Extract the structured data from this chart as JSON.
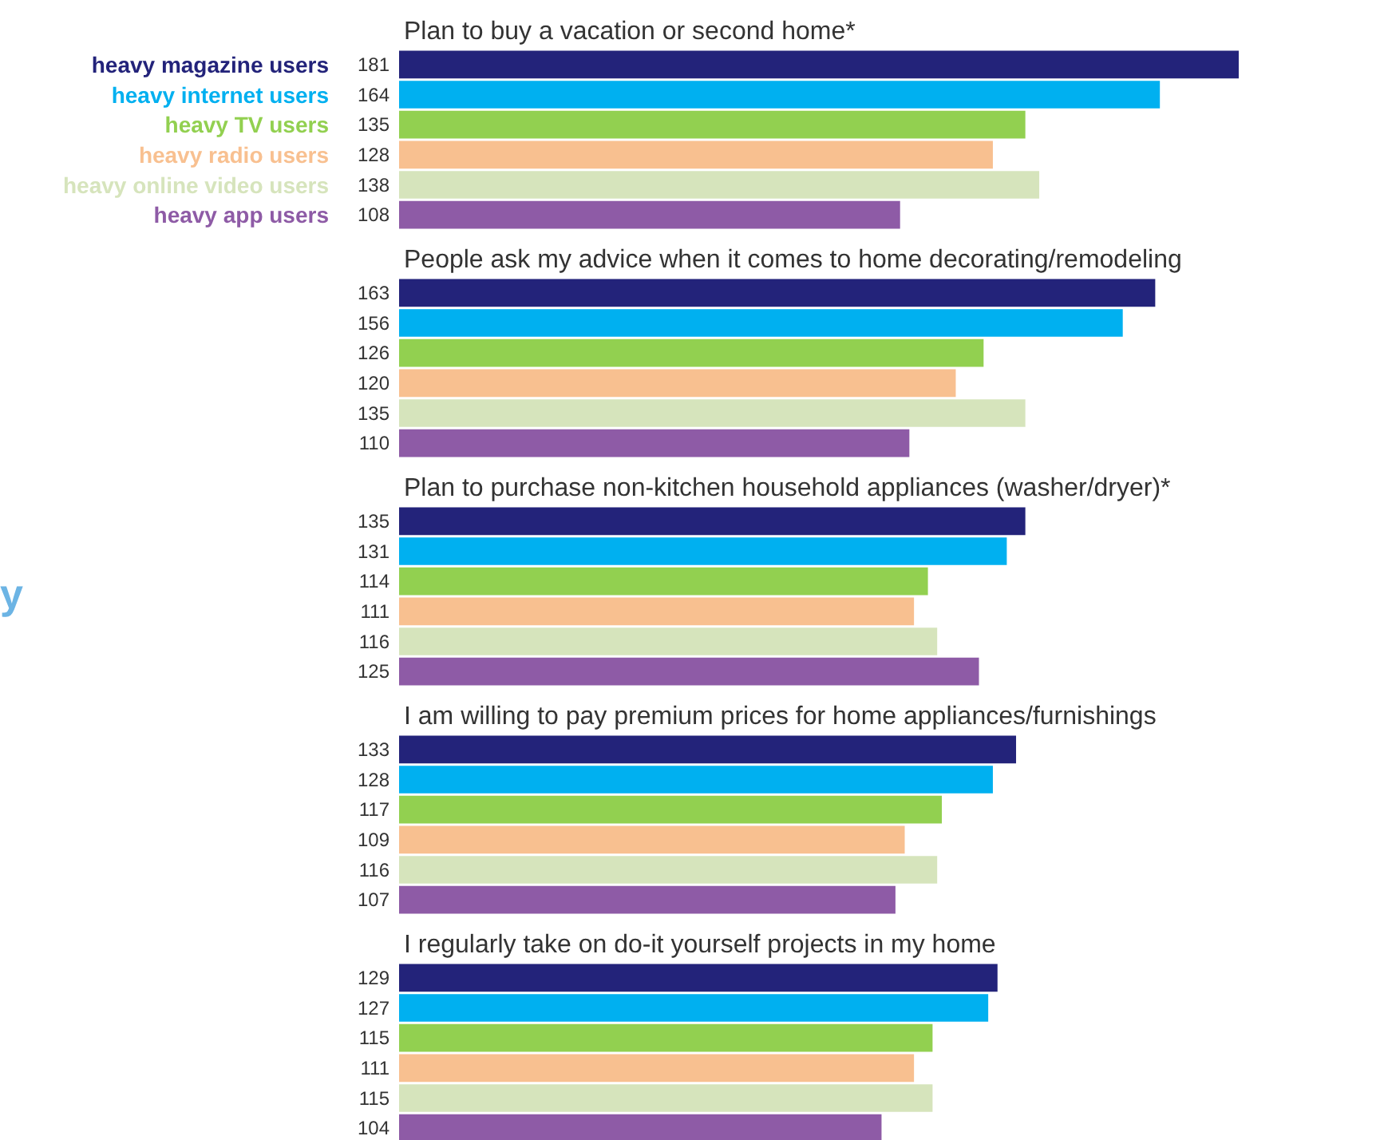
{
  "chart_data": [
    {
      "type": "bar",
      "orientation": "horizontal",
      "title": "Plan to buy a vacation or second home*",
      "categories": [
        "heavy magazine users",
        "heavy internet users",
        "heavy TV users",
        "heavy radio users",
        "heavy online video users",
        "heavy app users"
      ],
      "values": [
        181,
        164,
        135,
        128,
        138,
        108
      ],
      "colors": [
        "#23237a",
        "#00b0f0",
        "#92d050",
        "#f8c090",
        "#d6e4bc",
        "#8e5ba6"
      ],
      "data_labels": true,
      "tick_labels": "y"
    },
    {
      "type": "bar",
      "orientation": "horizontal",
      "title": "People ask my advice when it comes to home decorating/remodeling",
      "categories": [
        null,
        null,
        null,
        null,
        null,
        null
      ],
      "values": [
        163,
        156,
        126,
        120,
        135,
        110
      ],
      "colors": [
        "#23237a",
        "#00b0f0",
        "#92d050",
        "#f8c090",
        "#d6e4bc",
        "#8e5ba6"
      ],
      "data_labels": true,
      "tick_labels": "y"
    },
    {
      "type": "bar",
      "orientation": "horizontal",
      "title": "Plan to purchase non-kitchen household appliances (washer/dryer)*",
      "categories": [
        null,
        null,
        null,
        null,
        null,
        null
      ],
      "values": [
        135,
        131,
        114,
        111,
        116,
        125
      ],
      "colors": [
        "#23237a",
        "#00b0f0",
        "#92d050",
        "#f8c090",
        "#d6e4bc",
        "#8e5ba6"
      ],
      "data_labels": true,
      "tick_labels": "y",
      "annotations": [
        "y"
      ]
    },
    {
      "type": "bar",
      "orientation": "horizontal",
      "title": "I am willing to pay premium prices for home appliances/furnishings",
      "categories": [
        null,
        null,
        null,
        null,
        null,
        null
      ],
      "values": [
        133,
        128,
        117,
        109,
        116,
        107
      ],
      "colors": [
        "#23237a",
        "#00b0f0",
        "#92d050",
        "#f8c090",
        "#d6e4bc",
        "#8e5ba6"
      ],
      "data_labels": true,
      "tick_labels": "y"
    },
    {
      "type": "bar",
      "orientation": "horizontal",
      "title": "I regularly take on do-it yourself projects in my home",
      "categories": [
        null,
        null,
        null,
        null,
        null,
        null
      ],
      "values": [
        129,
        127,
        115,
        111,
        115,
        104
      ],
      "colors": [
        "#23237a",
        "#00b0f0",
        "#92d050",
        "#f8c090",
        "#d6e4bc",
        "#8e5ba6"
      ],
      "data_labels": true,
      "tick_labels": "y"
    }
  ]
}
